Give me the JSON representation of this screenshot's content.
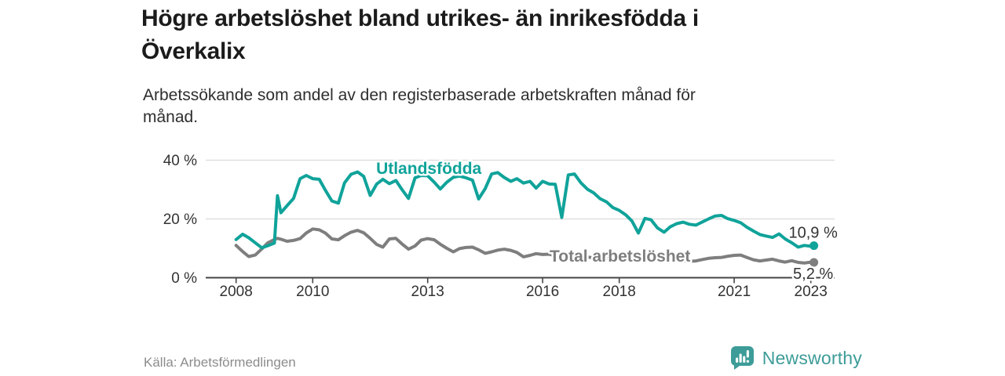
{
  "header": {
    "title_line1": "Högre arbetslöshet bland utrikes- än inrikesfödda i",
    "title_line2": "Överkalix",
    "subtitle_line1": "Arbetssökande som andel av den registerbaserade arbetskraften månad för",
    "subtitle_line2": "månad."
  },
  "footer": {
    "source": "Källa: Arbetsförmedlingen",
    "brand": {
      "name": "Newsworthy",
      "icon": "newsworthy-chart-bubble-icon",
      "color": "#3d9c98"
    }
  },
  "colors": {
    "background": "#ffffff",
    "title_text": "#1b1b1b",
    "tick_text": "#333333",
    "gridline": "#dadada",
    "axis": "#454545",
    "source_text": "#8c8c8c",
    "series_foreign": "#10a39a",
    "series_total": "#7e7e7e"
  },
  "chart_data": {
    "type": "line",
    "title": "Högre arbetslöshet bland utrikes- än inrikesfödda i Överkalix",
    "subtitle": "Arbetssökande som andel av den registerbaserade arbetskraften månad för månad.",
    "xlabel": "",
    "ylabel": "",
    "unit": "%",
    "ylim": [
      0,
      40
    ],
    "yticks": [
      0,
      20,
      40
    ],
    "ytick_format": "{v} %",
    "xlim": [
      2008,
      2023.2
    ],
    "xticks": [
      2008,
      2010,
      2013,
      2016,
      2018,
      2021,
      2023
    ],
    "grid": "horizontal",
    "legend_position": "inline-labels",
    "x": [
      2008,
      2008.17,
      2008.33,
      2008.5,
      2008.67,
      2008.83,
      2009,
      2009.08,
      2009.17,
      2009.33,
      2009.5,
      2009.67,
      2009.83,
      2010,
      2010.17,
      2010.33,
      2010.5,
      2010.67,
      2010.83,
      2011,
      2011.17,
      2011.33,
      2011.5,
      2011.67,
      2011.83,
      2012,
      2012.17,
      2012.33,
      2012.5,
      2012.67,
      2012.83,
      2013,
      2013.17,
      2013.33,
      2013.5,
      2013.67,
      2013.83,
      2014,
      2014.17,
      2014.33,
      2014.5,
      2014.67,
      2014.83,
      2015,
      2015.17,
      2015.33,
      2015.5,
      2015.67,
      2015.83,
      2016,
      2016.17,
      2016.33,
      2016.5,
      2016.67,
      2016.83,
      2017,
      2017.17,
      2017.33,
      2017.5,
      2017.67,
      2017.83,
      2018,
      2018.17,
      2018.33,
      2018.5,
      2018.67,
      2018.83,
      2019,
      2019.17,
      2019.33,
      2019.5,
      2019.67,
      2019.83,
      2020,
      2020.17,
      2020.33,
      2020.5,
      2020.67,
      2020.83,
      2021,
      2021.17,
      2021.33,
      2021.5,
      2021.67,
      2021.83,
      2022,
      2022.17,
      2022.33,
      2022.5,
      2022.67,
      2022.83,
      2023,
      2023.08
    ],
    "series": [
      {
        "name": "Total arbetslöshet",
        "color": "#7e7e7e",
        "end_value": 5.2,
        "end_label": "5,2 %",
        "end_label_position": "below",
        "label_pos": {
          "x": 2018.02,
          "y": 5.5
        },
        "values": [
          11.0,
          8.9,
          7.2,
          7.7,
          9.8,
          11.9,
          13.0,
          13.4,
          13.1,
          12.4,
          12.7,
          13.3,
          15.2,
          16.6,
          16.3,
          15.2,
          13.2,
          12.9,
          14.3,
          15.5,
          16.1,
          15.3,
          13.4,
          11.3,
          10.4,
          13.2,
          13.4,
          11.5,
          9.7,
          10.8,
          12.8,
          13.3,
          12.9,
          11.4,
          10.0,
          8.8,
          9.9,
          10.3,
          10.4,
          9.5,
          8.3,
          8.8,
          9.4,
          9.7,
          9.3,
          8.6,
          7.1,
          7.6,
          8.2,
          7.9,
          8.0,
          7.5,
          6.8,
          7.0,
          7.4,
          7.2,
          7.0,
          6.8,
          6.3,
          6.5,
          6.9,
          6.8,
          6.6,
          6.2,
          5.9,
          6.1,
          6.4,
          6.3,
          6.1,
          5.9,
          5.7,
          5.8,
          5.6,
          5.7,
          6.2,
          6.6,
          6.8,
          6.9,
          7.3,
          7.6,
          7.7,
          6.9,
          6.1,
          5.7,
          6.0,
          6.3,
          5.7,
          5.3,
          5.8,
          5.2,
          5.0,
          5.3,
          5.2
        ]
      },
      {
        "name": "Utlandsfödda",
        "color": "#10a39a",
        "end_value": 10.9,
        "end_label": "10,9 %",
        "end_label_position": "above",
        "label_pos": {
          "x": 2013.03,
          "y": 35.3
        },
        "values": [
          13.0,
          14.8,
          13.6,
          11.9,
          10.2,
          10.9,
          11.8,
          27.9,
          22.1,
          24.5,
          27.0,
          33.7,
          34.8,
          33.7,
          33.5,
          29.8,
          26.1,
          25.4,
          32.3,
          35.2,
          36.0,
          34.5,
          28.0,
          31.9,
          33.5,
          32.0,
          33.1,
          30.0,
          27.0,
          34.0,
          34.8,
          34.7,
          32.5,
          30.2,
          32.5,
          34.2,
          34.6,
          34.0,
          33.2,
          26.8,
          30.3,
          35.3,
          35.8,
          34.1,
          32.8,
          33.7,
          32.2,
          32.8,
          30.5,
          32.8,
          31.9,
          31.8,
          20.5,
          35.0,
          35.3,
          32.3,
          30.1,
          28.9,
          26.9,
          25.8,
          23.9,
          22.9,
          21.4,
          19.3,
          15.2,
          20.2,
          19.7,
          16.9,
          15.5,
          17.3,
          18.4,
          18.9,
          18.2,
          17.9,
          19.0,
          20.0,
          21.0,
          21.2,
          20.1,
          19.5,
          18.7,
          17.2,
          15.9,
          14.7,
          14.2,
          13.7,
          14.9,
          13.2,
          11.9,
          10.4,
          11.0,
          10.7,
          10.9
        ]
      }
    ]
  }
}
